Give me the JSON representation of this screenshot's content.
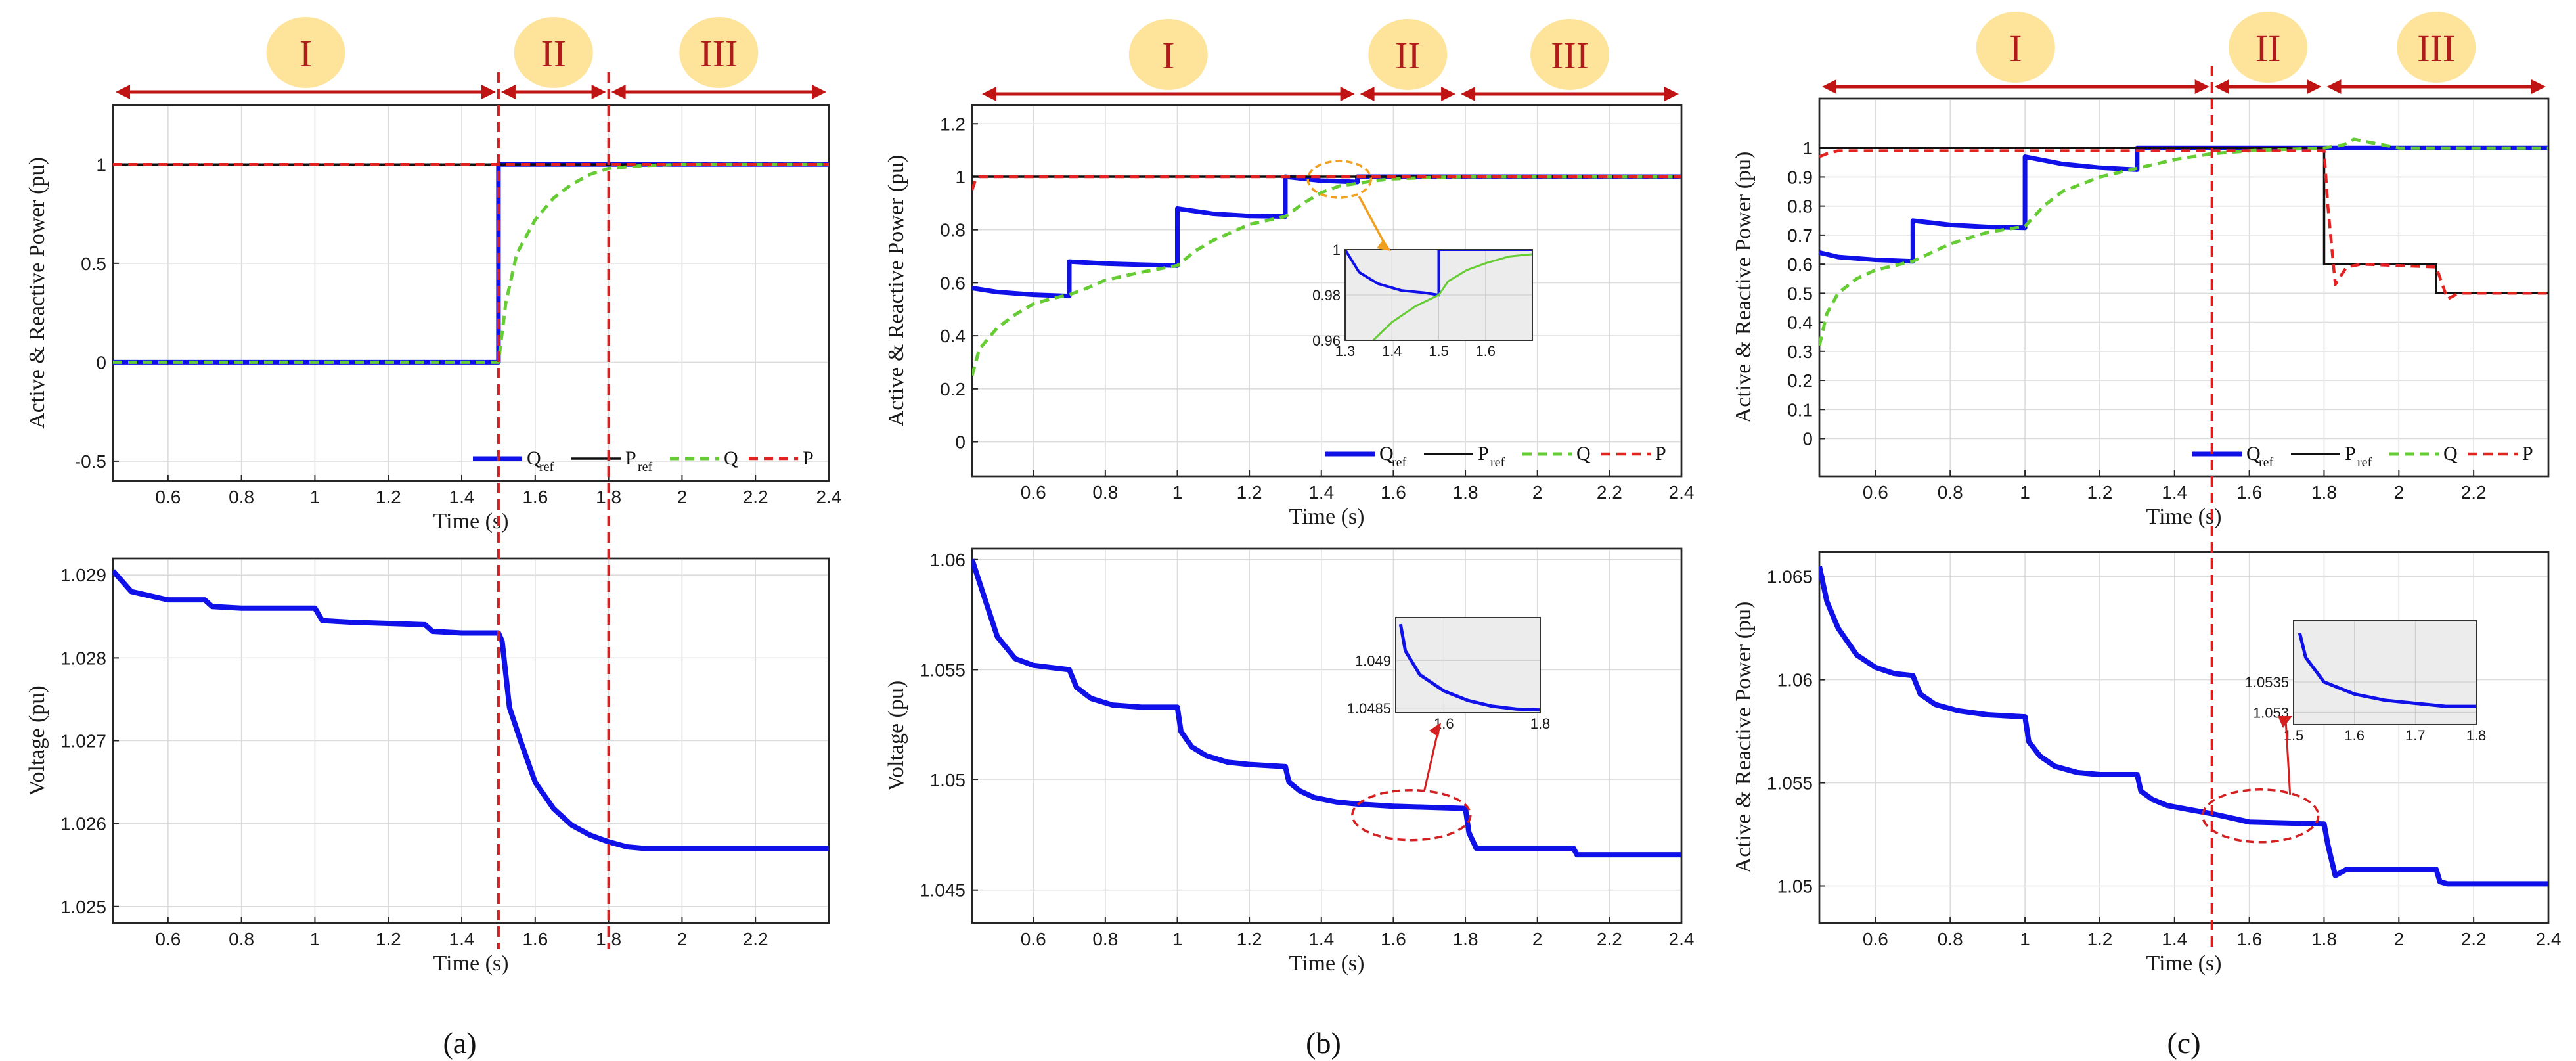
{
  "colors": {
    "q_ref": "#1010e8",
    "p_ref": "#111111",
    "q": "#66cc33",
    "p": "#e32222",
    "region_circle": "#fde49a",
    "region_text": "#b01c1c",
    "arrow": "#c01414",
    "inset_arrow_b": "#f0a020"
  },
  "panel_labels": [
    "(a)",
    "(b)",
    "(c)"
  ],
  "regions": [
    "I",
    "II",
    "III"
  ],
  "legend": {
    "q_ref_main": "Q",
    "q_ref_sub": "ref",
    "p_ref_main": "P",
    "p_ref_sub": "ref",
    "q": "Q",
    "p": "P"
  },
  "chart_data": [
    {
      "id": "a_power",
      "type": "line",
      "xlabel": "Time (s)",
      "ylabel": "Active & Reactive Power (pu)",
      "xlim": [
        0.45,
        2.4
      ],
      "ylim": [
        -0.6,
        1.3
      ],
      "xticks": [
        0.6,
        0.8,
        1,
        1.2,
        1.4,
        1.6,
        1.8,
        2,
        2.2,
        2.4
      ],
      "xtick_labels": [
        "0.6",
        "0.8",
        "1",
        "1.2",
        "1.4",
        "1.6",
        "1.8",
        "2",
        "2.2",
        "2.4"
      ],
      "yticks": [
        -0.5,
        0,
        0.5,
        1
      ],
      "ytick_labels": [
        "-0.5",
        "0",
        "0.5",
        "1"
      ],
      "grid": true,
      "legend_position": "bottom-right",
      "vlines": [
        1.5,
        1.8
      ],
      "series": [
        {
          "name": "Q_ref",
          "x": [
            0.45,
            1.5,
            1.5,
            2.4
          ],
          "y": [
            0,
            0,
            1,
            1
          ]
        },
        {
          "name": "P_ref",
          "x": [
            0.45,
            2.4
          ],
          "y": [
            1,
            1
          ]
        },
        {
          "name": "Q",
          "x": [
            0.45,
            1.5,
            1.52,
            1.55,
            1.6,
            1.65,
            1.7,
            1.75,
            1.8,
            1.9,
            2.0,
            2.4
          ],
          "y": [
            0,
            0,
            0.3,
            0.55,
            0.72,
            0.83,
            0.9,
            0.95,
            0.98,
            0.995,
            1,
            1
          ]
        },
        {
          "name": "P",
          "x": [
            0.45,
            2.4
          ],
          "y": [
            1,
            1
          ]
        }
      ]
    },
    {
      "id": "a_voltage",
      "type": "line",
      "xlabel": "Time (s)",
      "ylabel": "Voltage (pu)",
      "xlim": [
        0.45,
        2.4
      ],
      "ylim": [
        1.0248,
        1.0292
      ],
      "xticks": [
        0.6,
        0.8,
        1,
        1.2,
        1.4,
        1.6,
        1.8,
        2,
        2.2
      ],
      "xtick_labels": [
        "0.6",
        "0.8",
        "1",
        "1.2",
        "1.4",
        "1.6",
        "1.8",
        "2",
        "2.2"
      ],
      "yticks": [
        1.025,
        1.026,
        1.027,
        1.028,
        1.029
      ],
      "ytick_labels": [
        "1.025",
        "1.026",
        "1.027",
        "1.028",
        "1.029"
      ],
      "grid": true,
      "vlines": [
        1.5,
        1.8
      ],
      "series": [
        {
          "name": "Voltage",
          "x": [
            0.45,
            0.5,
            0.55,
            0.6,
            0.7,
            0.72,
            0.8,
            1.0,
            1.02,
            1.1,
            1.3,
            1.32,
            1.4,
            1.5,
            1.51,
            1.53,
            1.56,
            1.6,
            1.65,
            1.7,
            1.75,
            1.8,
            1.85,
            1.9,
            2.0,
            2.2,
            2.4
          ],
          "y": [
            1.02905,
            1.0288,
            1.02875,
            1.0287,
            1.0287,
            1.02862,
            1.0286,
            1.0286,
            1.02845,
            1.02843,
            1.0284,
            1.02832,
            1.0283,
            1.0283,
            1.0282,
            1.0274,
            1.027,
            1.0265,
            1.02618,
            1.02598,
            1.02586,
            1.02578,
            1.02572,
            1.0257,
            1.0257,
            1.0257,
            1.0257
          ]
        }
      ]
    },
    {
      "id": "b_power",
      "type": "line",
      "xlabel": "Time (s)",
      "ylabel": "Active & Reactive Power (pu)",
      "xlim": [
        0.43,
        2.4
      ],
      "ylim": [
        -0.13,
        1.27
      ],
      "xticks": [
        0.6,
        0.8,
        1,
        1.2,
        1.4,
        1.6,
        1.8,
        2,
        2.2,
        2.4
      ],
      "xtick_labels": [
        "0.6",
        "0.8",
        "1",
        "1.2",
        "1.4",
        "1.6",
        "1.8",
        "2",
        "2.2",
        "2.4"
      ],
      "yticks": [
        0,
        0.2,
        0.4,
        0.6,
        0.8,
        1,
        1.2
      ],
      "ytick_labels": [
        "0",
        "0.2",
        "0.4",
        "0.6",
        "0.8",
        "1",
        "1.2"
      ],
      "grid": true,
      "legend_position": "bottom-right",
      "series": [
        {
          "name": "Q_ref",
          "x": [
            0.43,
            0.5,
            0.6,
            0.7,
            0.7,
            0.8,
            0.9,
            1.0,
            1.0,
            1.1,
            1.2,
            1.3,
            1.3,
            1.4,
            1.5,
            1.5,
            2.4
          ],
          "y": [
            0.58,
            0.565,
            0.555,
            0.55,
            0.68,
            0.672,
            0.668,
            0.665,
            0.88,
            0.86,
            0.852,
            0.85,
            1.0,
            0.985,
            0.98,
            1.0,
            1.0
          ]
        },
        {
          "name": "P_ref",
          "x": [
            0.43,
            2.4
          ],
          "y": [
            1,
            1
          ]
        },
        {
          "name": "Q",
          "x": [
            0.43,
            0.45,
            0.5,
            0.55,
            0.6,
            0.65,
            0.7,
            0.75,
            0.8,
            0.9,
            1.0,
            1.05,
            1.1,
            1.2,
            1.3,
            1.35,
            1.4,
            1.45,
            1.5,
            1.55,
            1.6,
            1.7,
            1.8,
            2.4
          ],
          "y": [
            0.25,
            0.35,
            0.43,
            0.48,
            0.52,
            0.54,
            0.555,
            0.58,
            0.61,
            0.64,
            0.665,
            0.72,
            0.76,
            0.82,
            0.85,
            0.9,
            0.94,
            0.965,
            0.975,
            0.985,
            0.992,
            0.997,
            1,
            1
          ]
        },
        {
          "name": "P",
          "x": [
            0.43,
            0.44,
            0.45,
            2.4
          ],
          "y": [
            0.95,
            0.99,
            1,
            1
          ]
        }
      ],
      "inset": {
        "xlim": [
          1.3,
          1.7
        ],
        "ylim": [
          0.96,
          1.0
        ],
        "xticks": [
          1.3,
          1.4,
          1.5,
          1.6
        ],
        "xtick_labels": [
          "1.3",
          "1.4",
          "1.5",
          "1.6"
        ],
        "yticks": [
          0.96,
          0.98,
          1.0
        ],
        "ytick_labels": [
          "0.96",
          "0.98",
          "1"
        ],
        "series": [
          {
            "name": "Q_ref",
            "x": [
              1.3,
              1.3,
              1.33,
              1.37,
              1.42,
              1.47,
              1.5,
              1.5,
              1.7
            ],
            "y": [
              0.96,
              1.0,
              0.99,
              0.985,
              0.982,
              0.981,
              0.98,
              1.0,
              1.0
            ]
          },
          {
            "name": "Q",
            "x": [
              1.36,
              1.4,
              1.45,
              1.5,
              1.52,
              1.56,
              1.6,
              1.65,
              1.7
            ],
            "y": [
              0.96,
              0.968,
              0.975,
              0.98,
              0.986,
              0.991,
              0.994,
              0.997,
              0.998
            ]
          }
        ]
      }
    },
    {
      "id": "b_voltage",
      "type": "line",
      "xlabel": "Time (s)",
      "ylabel": "Voltage (pu)",
      "xlim": [
        0.43,
        2.4
      ],
      "ylim": [
        1.0435,
        1.0605
      ],
      "xticks": [
        0.6,
        0.8,
        1,
        1.2,
        1.4,
        1.6,
        1.8,
        2,
        2.2,
        2.4
      ],
      "xtick_labels": [
        "0.6",
        "0.8",
        "1",
        "1.2",
        "1.4",
        "1.6",
        "1.8",
        "2",
        "2.2",
        "2.4"
      ],
      "yticks": [
        1.045,
        1.05,
        1.055,
        1.06
      ],
      "ytick_labels": [
        "1.045",
        "1.05",
        "1.055",
        "1.06"
      ],
      "grid": true,
      "series": [
        {
          "name": "Voltage",
          "x": [
            0.43,
            0.46,
            0.5,
            0.55,
            0.6,
            0.65,
            0.7,
            0.72,
            0.76,
            0.82,
            0.9,
            1.0,
            1.01,
            1.04,
            1.08,
            1.14,
            1.2,
            1.3,
            1.31,
            1.34,
            1.38,
            1.44,
            1.5,
            1.6,
            1.8,
            1.81,
            1.83,
            1.9,
            2.0,
            2.1,
            2.11,
            2.13,
            2.2,
            2.4
          ],
          "y": [
            1.06,
            1.0585,
            1.0565,
            1.0555,
            1.0552,
            1.0551,
            1.055,
            1.0542,
            1.0537,
            1.0534,
            1.0533,
            1.0533,
            1.0522,
            1.0515,
            1.0511,
            1.0508,
            1.0507,
            1.0506,
            1.0499,
            1.0495,
            1.0492,
            1.049,
            1.0489,
            1.0488,
            1.0487,
            1.0476,
            1.0469,
            1.0469,
            1.0469,
            1.0469,
            1.0466,
            1.0466,
            1.0466,
            1.0466
          ]
        }
      ],
      "inset": {
        "xlim": [
          1.5,
          1.8
        ],
        "ylim": [
          1.04845,
          1.04945
        ],
        "xticks": [
          1.6,
          1.8
        ],
        "xtick_labels": [
          "1.6",
          "1.8"
        ],
        "yticks": [
          1.0485,
          1.049
        ],
        "ytick_labels": [
          "1.0485",
          "1.049"
        ],
        "series": [
          {
            "name": "Voltage",
            "x": [
              1.51,
              1.52,
              1.55,
              1.6,
              1.65,
              1.7,
              1.75,
              1.8
            ],
            "y": [
              1.04938,
              1.0491,
              1.04885,
              1.04868,
              1.04858,
              1.04852,
              1.04849,
              1.04848
            ]
          }
        ]
      }
    },
    {
      "id": "c_power",
      "type": "line",
      "xlabel": "Time (s)",
      "ylabel": "Active & Reactive Power (pu)",
      "xlim": [
        0.45,
        2.4
      ],
      "ylim": [
        -0.13,
        1.17
      ],
      "xticks": [
        0.6,
        0.8,
        1,
        1.2,
        1.4,
        1.6,
        1.8,
        2,
        2.2
      ],
      "xtick_labels": [
        "0.6",
        "0.8",
        "1",
        "1.2",
        "1.4",
        "1.6",
        "1.8",
        "2",
        "2.2"
      ],
      "yticks": [
        0,
        0.1,
        0.2,
        0.3,
        0.4,
        0.5,
        0.6,
        0.7,
        0.8,
        0.9,
        1
      ],
      "ytick_labels": [
        "0",
        "0.1",
        "0.2",
        "0.3",
        "0.4",
        "0.5",
        "0.6",
        "0.7",
        "0.8",
        "0.9",
        "1"
      ],
      "grid": true,
      "legend_position": "bottom-right",
      "vlines": [
        1.5
      ],
      "series": [
        {
          "name": "Q_ref",
          "x": [
            0.45,
            0.5,
            0.6,
            0.7,
            0.7,
            0.8,
            0.9,
            1.0,
            1.0,
            1.1,
            1.2,
            1.3,
            1.3,
            2.4
          ],
          "y": [
            0.64,
            0.625,
            0.615,
            0.61,
            0.75,
            0.735,
            0.728,
            0.725,
            0.97,
            0.945,
            0.932,
            0.925,
            1.0,
            1.0
          ]
        },
        {
          "name": "P_ref",
          "x": [
            0.45,
            1.8,
            1.8,
            1.82,
            2.1,
            2.1,
            2.4
          ],
          "y": [
            1,
            1,
            0.6,
            0.6,
            0.6,
            0.5,
            0.5
          ]
        },
        {
          "name": "Q",
          "x": [
            0.45,
            0.47,
            0.5,
            0.55,
            0.6,
            0.7,
            0.8,
            0.9,
            1.0,
            1.05,
            1.1,
            1.2,
            1.3,
            1.4,
            1.5,
            1.6,
            1.7,
            1.8,
            1.85,
            1.88,
            2.0,
            2.4
          ],
          "y": [
            0.32,
            0.43,
            0.5,
            0.55,
            0.58,
            0.61,
            0.67,
            0.71,
            0.73,
            0.8,
            0.85,
            0.9,
            0.93,
            0.96,
            0.98,
            0.99,
            0.995,
            1.0,
            1.01,
            1.03,
            1.0,
            1.0
          ]
        },
        {
          "name": "P",
          "x": [
            0.45,
            0.47,
            0.5,
            1.8,
            1.81,
            1.83,
            1.86,
            1.9,
            2.1,
            2.13,
            2.16,
            2.4
          ],
          "y": [
            0.97,
            0.98,
            0.99,
            0.99,
            0.8,
            0.53,
            0.59,
            0.6,
            0.59,
            0.48,
            0.5,
            0.5
          ]
        }
      ]
    },
    {
      "id": "c_voltage",
      "type": "line",
      "xlabel": "Time (s)",
      "ylabel": "Active & Reactive Power (pu)",
      "xlim": [
        0.45,
        2.4
      ],
      "ylim": [
        1.0482,
        1.0662
      ],
      "xticks": [
        0.6,
        0.8,
        1,
        1.2,
        1.4,
        1.6,
        1.8,
        2,
        2.2,
        2.4
      ],
      "xtick_labels": [
        "0.6",
        "0.8",
        "1",
        "1.2",
        "1.4",
        "1.6",
        "1.8",
        "2",
        "2.2",
        "2.4"
      ],
      "yticks": [
        1.05,
        1.055,
        1.06,
        1.065
      ],
      "ytick_labels": [
        "1.05",
        "1.055",
        "1.06",
        "1.065"
      ],
      "grid": true,
      "vlines": [
        1.5
      ],
      "series": [
        {
          "name": "Voltage",
          "x": [
            0.45,
            0.47,
            0.5,
            0.55,
            0.6,
            0.65,
            0.7,
            0.72,
            0.76,
            0.82,
            0.9,
            1.0,
            1.01,
            1.04,
            1.08,
            1.14,
            1.2,
            1.3,
            1.31,
            1.34,
            1.38,
            1.44,
            1.5,
            1.55,
            1.6,
            1.8,
            1.81,
            1.83,
            1.86,
            1.9,
            2.0,
            2.1,
            2.11,
            2.13,
            2.2,
            2.4
          ],
          "y": [
            1.0655,
            1.0638,
            1.0625,
            1.0612,
            1.0606,
            1.0603,
            1.0602,
            1.0593,
            1.0588,
            1.0585,
            1.0583,
            1.0582,
            1.057,
            1.0563,
            1.0558,
            1.0555,
            1.0554,
            1.0554,
            1.0546,
            1.0542,
            1.0539,
            1.0537,
            1.0535,
            1.0533,
            1.0531,
            1.053,
            1.052,
            1.0505,
            1.0508,
            1.0508,
            1.0508,
            1.0508,
            1.0502,
            1.0501,
            1.0501,
            1.0501
          ]
        }
      ],
      "inset": {
        "xlim": [
          1.5,
          1.8
        ],
        "ylim": [
          1.0528,
          1.0545
        ],
        "xticks": [
          1.5,
          1.6,
          1.7,
          1.8
        ],
        "xtick_labels": [
          "1.5",
          "1.6",
          "1.7",
          "1.8"
        ],
        "yticks": [
          1.053,
          1.0535
        ],
        "ytick_labels": [
          "1.053",
          "1.0535"
        ],
        "series": [
          {
            "name": "Voltage",
            "x": [
              1.51,
              1.52,
              1.55,
              1.6,
              1.65,
              1.7,
              1.75,
              1.8
            ],
            "y": [
              1.0543,
              1.0539,
              1.0535,
              1.0533,
              1.0532,
              1.05315,
              1.0531,
              1.0531
            ]
          }
        ]
      }
    }
  ]
}
